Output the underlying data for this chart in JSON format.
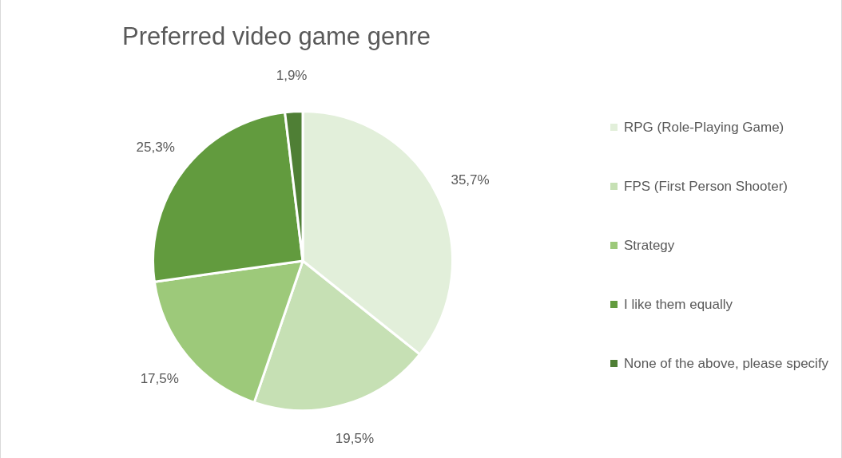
{
  "chart_data": {
    "type": "pie",
    "title": "Preferred video game genre",
    "categories": [
      "RPG (Role-Playing Game)",
      "FPS (First Person Shooter)",
      "Strategy",
      "I like them equally",
      "None of the above, please specify"
    ],
    "values": [
      35.7,
      19.5,
      17.5,
      25.3,
      1.9
    ],
    "colors": [
      "#e2efda",
      "#c6e0b4",
      "#9dc97a",
      "#629b3e",
      "#4f7f35"
    ],
    "value_labels": [
      "35,7%",
      "19,5%",
      "17,5%",
      "25,3%",
      "1,9%"
    ],
    "legend": "right"
  }
}
